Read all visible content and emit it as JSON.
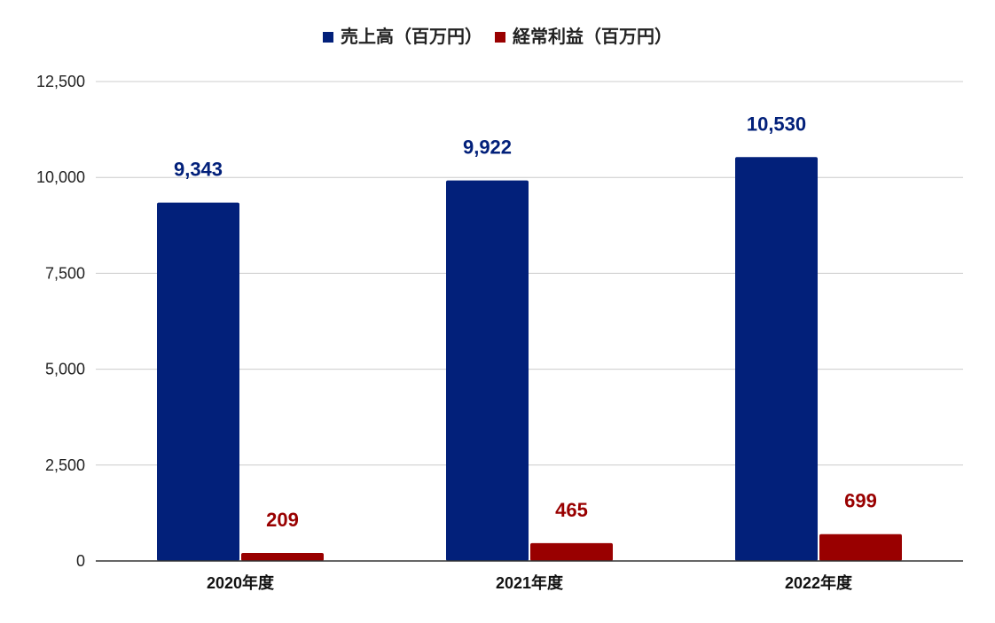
{
  "chart_data": {
    "type": "bar",
    "categories": [
      "2020年度",
      "2021年度",
      "2022年度"
    ],
    "series": [
      {
        "name": "売上高（百万円）",
        "values": [
          9343,
          9922,
          10530
        ],
        "color": "#02207a",
        "labels": [
          "9,343",
          "9,922",
          "10,530"
        ]
      },
      {
        "name": "経常利益（百万円）",
        "values": [
          209,
          465,
          699
        ],
        "color": "#990000",
        "labels": [
          "209",
          "465",
          "699"
        ]
      }
    ],
    "y_ticks": [
      {
        "value": 0,
        "label": "0"
      },
      {
        "value": 2500,
        "label": "2,500"
      },
      {
        "value": 5000,
        "label": "5,000"
      },
      {
        "value": 7500,
        "label": "7,500"
      },
      {
        "value": 10000,
        "label": "10,000"
      },
      {
        "value": 12500,
        "label": "12,500"
      }
    ],
    "ylim": [
      0,
      12500
    ],
    "grid": true,
    "legend_position": "top-center",
    "gridline_color": "#cccccc",
    "axis_color": "#333333"
  }
}
